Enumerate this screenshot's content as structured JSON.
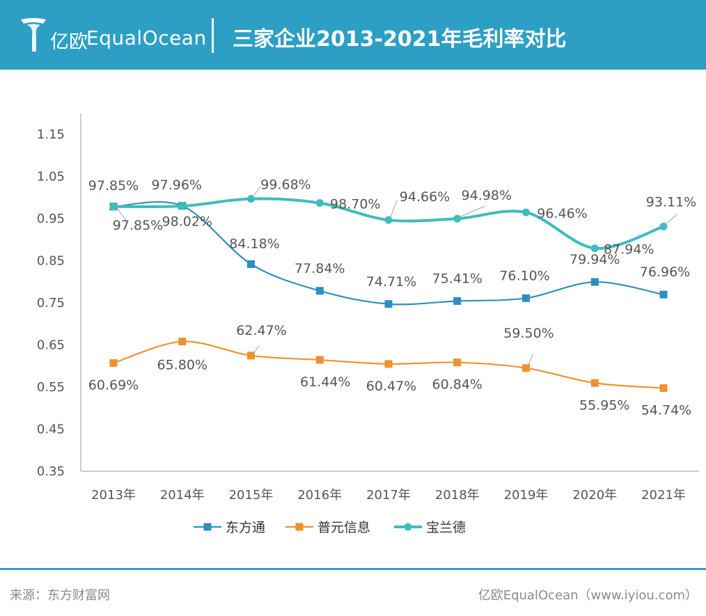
{
  "header": {
    "brand_cn": "亿欧",
    "brand_en": "EqualOcean",
    "title": "三家企业2013-2021年毛利率对比",
    "background_color": "#2d9fc5"
  },
  "footer": {
    "source": "来源：东方财富网",
    "credit": "亿欧EqualOcean（www.iyiou.com）"
  },
  "chart_data": {
    "type": "line",
    "title": "三家企业2013-2021年毛利率对比",
    "xlabel": "",
    "ylabel": "",
    "categories": [
      "2013年",
      "2014年",
      "2015年",
      "2016年",
      "2017年",
      "2018年",
      "2019年",
      "2020年",
      "2021年"
    ],
    "y_ticks": [
      "1.15",
      "1.05",
      "0.95",
      "0.85",
      "0.75",
      "0.65",
      "0.55",
      "0.45",
      "0.35"
    ],
    "ylim": [
      0.35,
      1.15
    ],
    "grid": false,
    "legend_position": "bottom",
    "series": [
      {
        "name": "东方通",
        "color": "#2e8fbf",
        "marker": "square",
        "values": [
          0.9785,
          0.9802,
          0.8418,
          0.7784,
          0.7471,
          0.7541,
          0.761,
          0.7994,
          0.7696
        ],
        "labels": [
          "97.85%",
          "98.02%",
          "84.18%",
          "77.84%",
          "74.71%",
          "75.41%",
          "76.10%",
          "79.94%",
          "76.96%"
        ]
      },
      {
        "name": "普元信息",
        "color": "#f0912e",
        "marker": "square",
        "values": [
          0.6069,
          0.658,
          0.6247,
          0.6144,
          0.6047,
          0.6084,
          0.595,
          0.5595,
          0.5474
        ],
        "labels": [
          "60.69%",
          "65.80%",
          "62.47%",
          "61.44%",
          "60.47%",
          "60.84%",
          "59.50%",
          "55.95%",
          "54.74%"
        ]
      },
      {
        "name": "宝兰德",
        "color": "#3dbdbd",
        "marker": "circle",
        "values": [
          0.9785,
          0.9796,
          0.9968,
          0.987,
          0.9466,
          0.9498,
          0.9646,
          0.8794,
          0.9311
        ],
        "labels": [
          "97.85%",
          "97.96%",
          "99.68%",
          "98.70%",
          "94.66%",
          "94.98%",
          "96.46%",
          "87.94%",
          "93.11%"
        ]
      }
    ]
  }
}
